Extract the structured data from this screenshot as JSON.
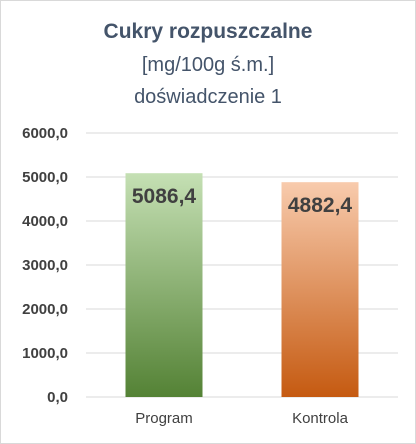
{
  "chart_data": {
    "type": "bar",
    "title": "Cukry rozpuszczalne",
    "subtitle_lines": [
      "[mg/100g ś.m.]",
      "doświadczenie 1"
    ],
    "categories": [
      "Program",
      "Kontrola"
    ],
    "values": [
      5086.4,
      4882.4
    ],
    "data_labels": [
      "5086,4",
      "4882,4"
    ],
    "ylim": [
      0,
      6000
    ],
    "yticks": [
      0,
      1000,
      2000,
      3000,
      4000,
      5000,
      6000
    ],
    "ytick_labels": [
      "0,0",
      "1000,0",
      "2000,0",
      "3000,0",
      "4000,0",
      "5000,0",
      "6000,0"
    ],
    "grid": true,
    "colors": {
      "Program": {
        "top": "#c5e0b4",
        "bottom": "#548235"
      },
      "Kontrola": {
        "top": "#f8cbad",
        "bottom": "#c55a11"
      },
      "gridline": "#d9d9d9",
      "text": "#404040",
      "title": "#44546a"
    }
  }
}
